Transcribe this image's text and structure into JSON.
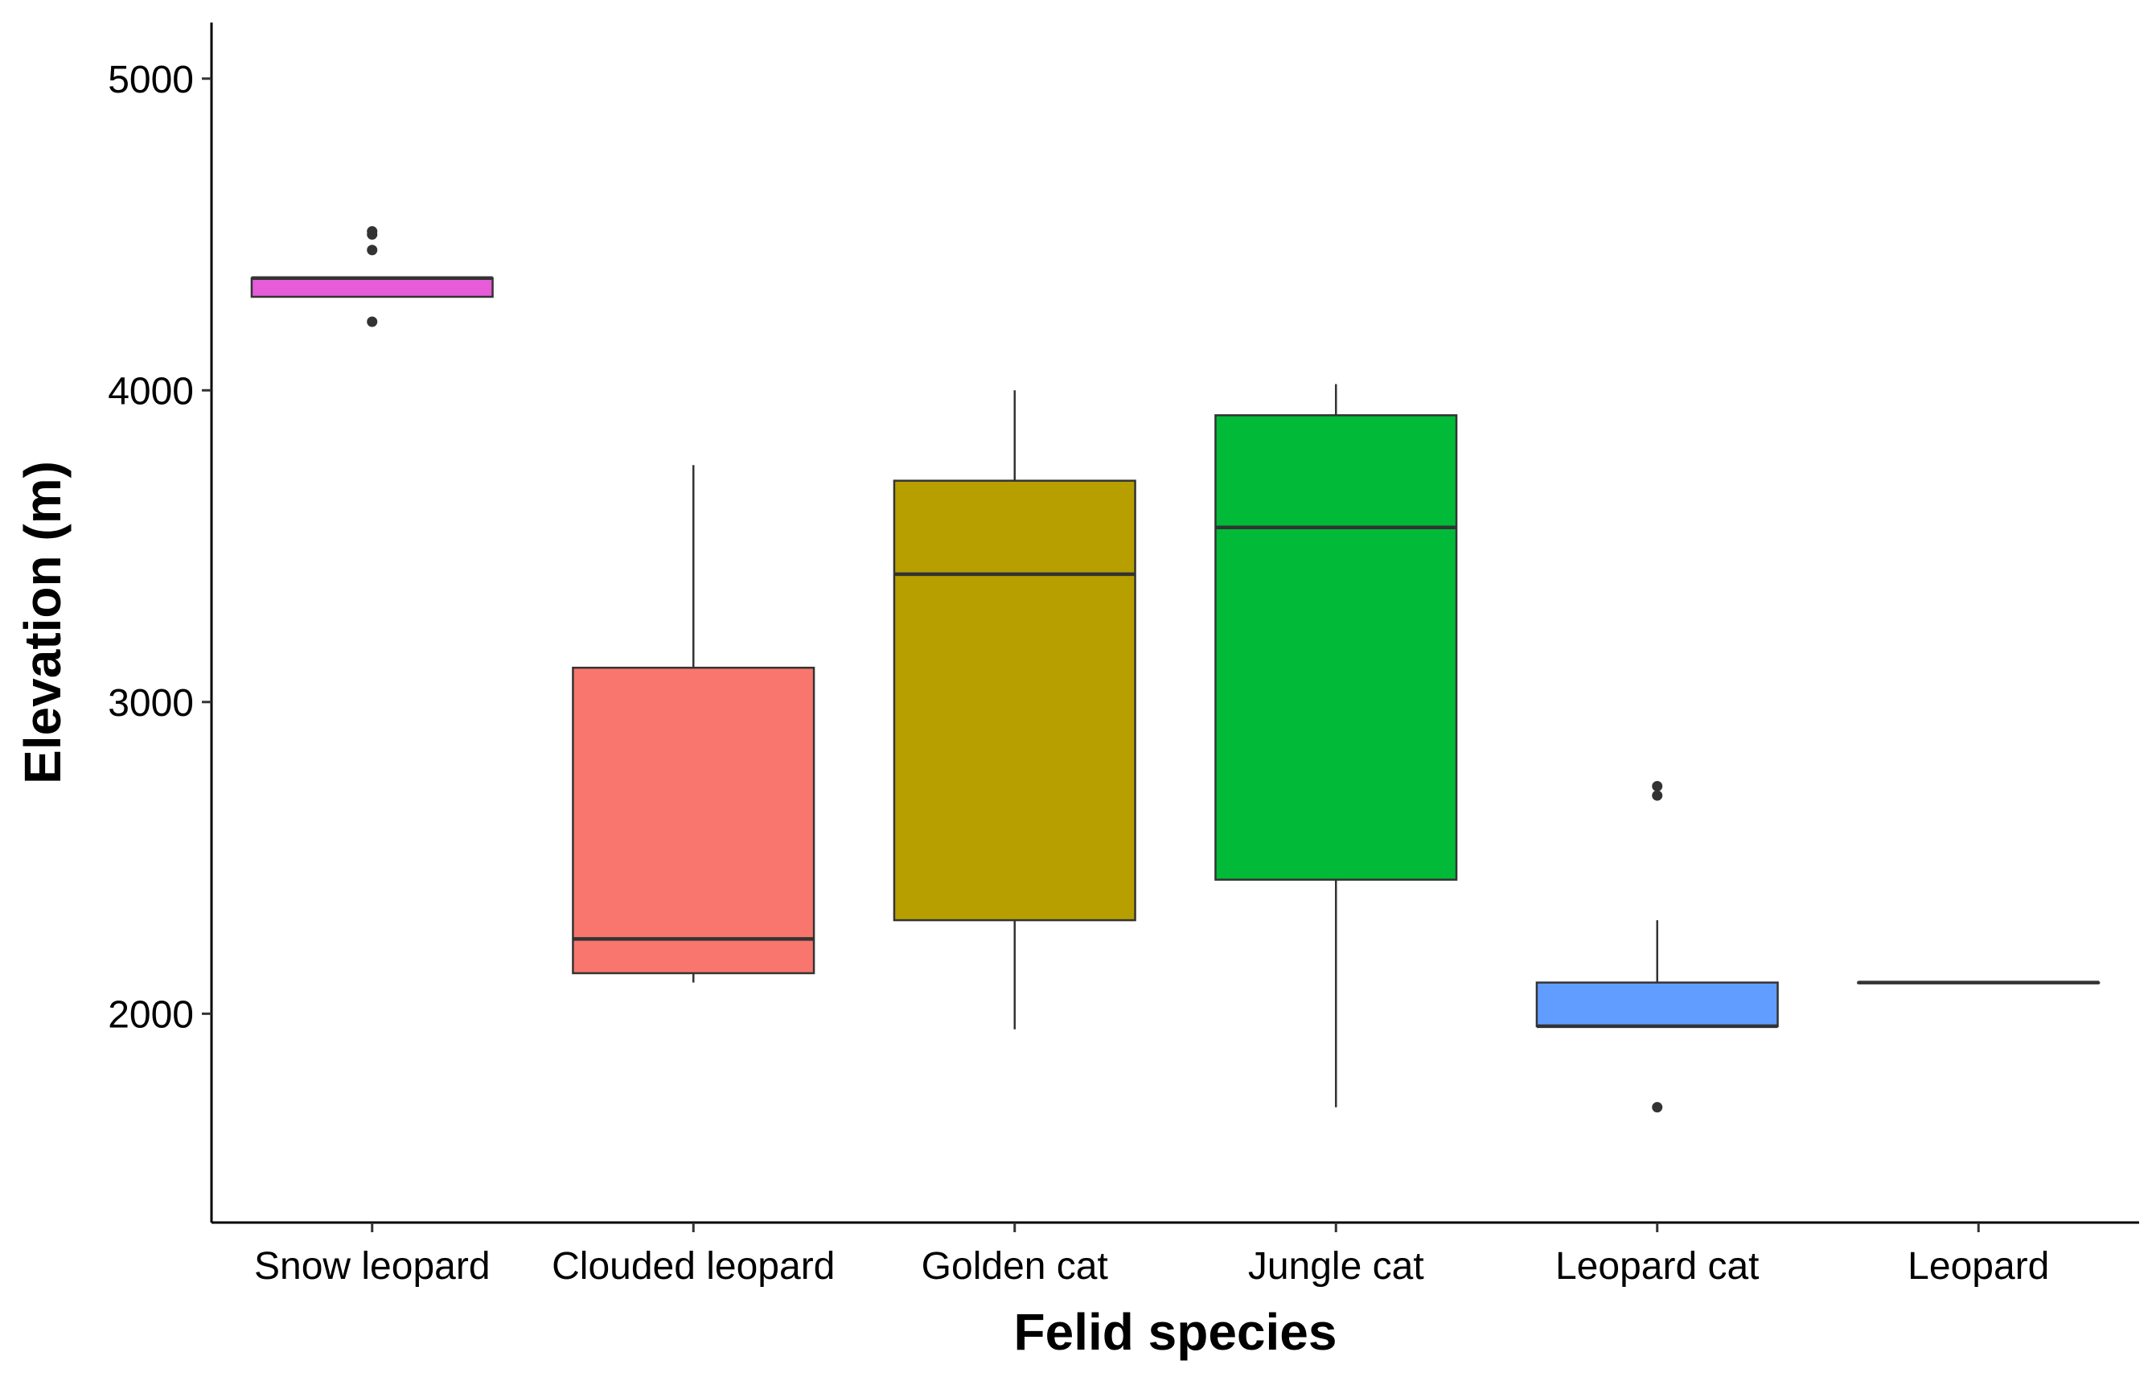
{
  "chart_data": {
    "type": "boxplot",
    "title": "",
    "xlabel": "Felid species",
    "ylabel": "Elevation (m)",
    "ylim": [
      1330,
      5180
    ],
    "yticks": [
      2000,
      3000,
      4000,
      5000
    ],
    "grid": false,
    "legend": "none",
    "categories": [
      "Snow leopard",
      "Clouded leopard",
      "Golden cat",
      "Jungle cat",
      "Leopard cat",
      "Leopard"
    ],
    "boxes": [
      {
        "category": "Snow leopard",
        "color": "#E55BD8",
        "whisker_low": 4300,
        "q1": 4300,
        "median": 4360,
        "q3": 4360,
        "whisker_high": 4360,
        "outliers": [
          4220,
          4450,
          4500,
          4510
        ]
      },
      {
        "category": "Clouded leopard",
        "color": "#F8766D",
        "whisker_low": 2100,
        "q1": 2130,
        "median": 2240,
        "q3": 3110,
        "whisker_high": 3760,
        "outliers": []
      },
      {
        "category": "Golden cat",
        "color": "#B79F00",
        "whisker_low": 1950,
        "q1": 2300,
        "median": 3410,
        "q3": 3710,
        "whisker_high": 4000,
        "outliers": []
      },
      {
        "category": "Jungle cat",
        "color": "#00BA38",
        "whisker_low": 1700,
        "q1": 2430,
        "median": 3560,
        "q3": 3920,
        "whisker_high": 4020,
        "outliers": []
      },
      {
        "category": "Leopard cat",
        "color": "#619CFF",
        "whisker_low": 1960,
        "q1": 1960,
        "median": 1960,
        "q3": 2100,
        "whisker_high": 2300,
        "outliers": [
          1700,
          2700,
          2730
        ]
      },
      {
        "category": "Leopard",
        "color": "#00BFC4",
        "whisker_low": 2100,
        "q1": 2100,
        "median": 2100,
        "q3": 2100,
        "whisker_high": 2100,
        "outliers": []
      }
    ]
  }
}
